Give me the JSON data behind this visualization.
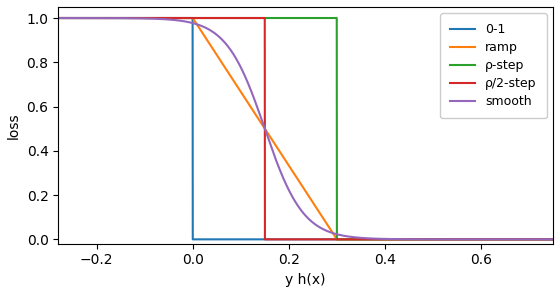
{
  "title": "",
  "xlabel": "y h(x)",
  "ylabel": "loss",
  "xlim": [
    -0.28,
    0.75
  ],
  "ylim": [
    -0.02,
    1.05
  ],
  "rho": 0.3,
  "rho2": 0.15,
  "x_min": -0.3,
  "x_max": 0.75,
  "n_points": 3000,
  "smooth_k": 25.0,
  "smooth_c": 0.15,
  "colors": {
    "zero_one": "#1f77b4",
    "ramp": "#ff7f0e",
    "rho_step": "#2ca02c",
    "rho2_step": "#d62728",
    "smooth": "#9467bd"
  },
  "legend_labels": {
    "zero_one": "0-1",
    "ramp": "ramp",
    "rho_step": "ρ-step",
    "rho2_step": "ρ/2-step",
    "smooth": "smooth"
  },
  "xticks": [
    -0.2,
    0.0,
    0.2,
    0.4,
    0.6
  ],
  "yticks": [
    0.0,
    0.2,
    0.4,
    0.6,
    0.8,
    1.0
  ],
  "figsize": [
    5.6,
    2.94
  ],
  "dpi": 100,
  "linewidth": 1.5
}
